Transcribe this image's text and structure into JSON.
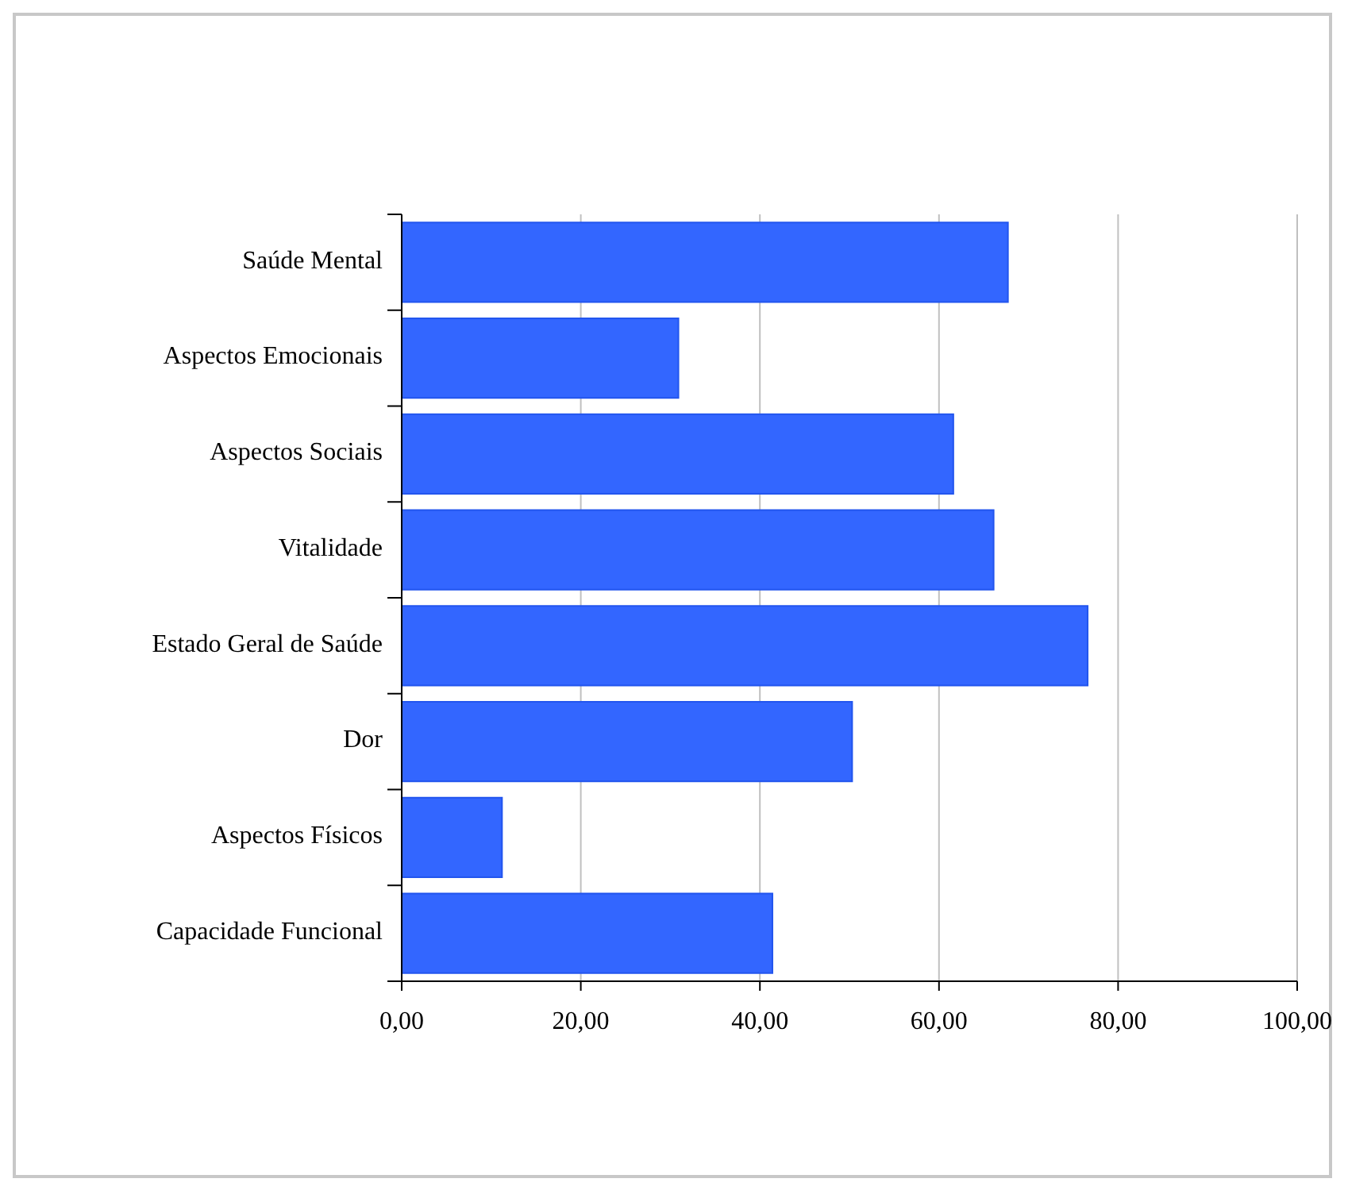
{
  "chart_data": {
    "type": "bar",
    "orientation": "horizontal",
    "categories": [
      "Saúde Mental",
      "Aspectos Emocionais",
      "Aspectos Sociais",
      "Vitalidade",
      "Estado Geral de Saúde",
      "Dor",
      "Aspectos Físicos",
      "Capacidade Funcional"
    ],
    "values": [
      67.7,
      30.9,
      61.6,
      66.1,
      76.6,
      50.3,
      11.2,
      41.4
    ],
    "color": "#3366ff",
    "xlim": [
      0,
      100
    ],
    "xticks": [
      {
        "value": 0,
        "label": "0,00"
      },
      {
        "value": 20,
        "label": "20,00"
      },
      {
        "value": 40,
        "label": "40,00"
      },
      {
        "value": 60,
        "label": "60,00"
      },
      {
        "value": 80,
        "label": "80,00"
      },
      {
        "value": 100,
        "label": "100,00"
      }
    ],
    "grid": "x"
  }
}
